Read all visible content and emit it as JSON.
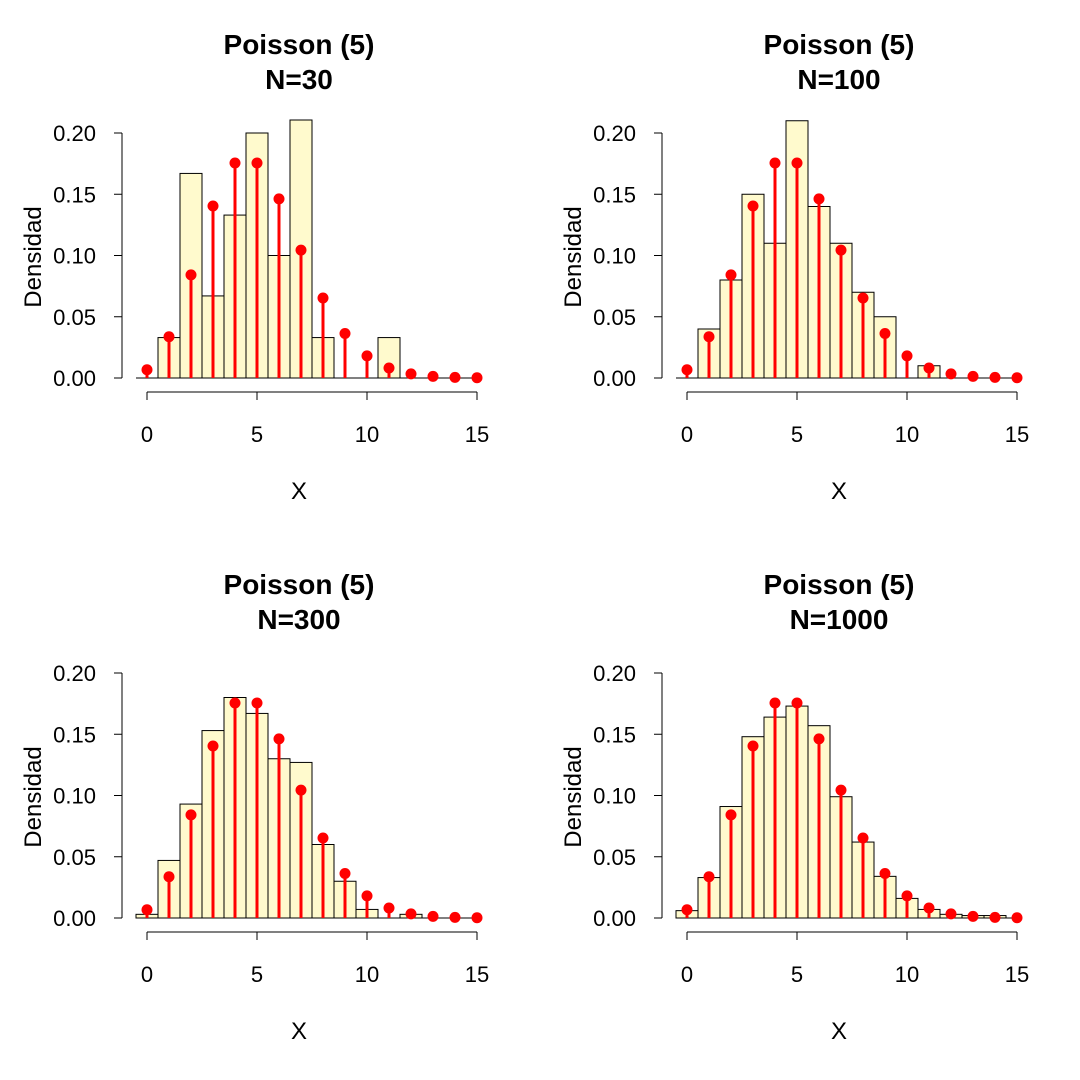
{
  "chart_data": [
    {
      "type": "bar",
      "title_line1": "Poisson (5)",
      "title_line2": "N=30",
      "xlabel": "X",
      "ylabel": "Densidad",
      "xlim": [
        0,
        15
      ],
      "ylim": [
        0,
        0.2
      ],
      "xticks": [
        0,
        5,
        10,
        15
      ],
      "yticks": [
        "0.00",
        "0.05",
        "0.10",
        "0.15",
        "0.20"
      ],
      "histogram": {
        "x": [
          1,
          2,
          3,
          4,
          5,
          6,
          7,
          8,
          9,
          10,
          11
        ],
        "density": [
          0.033,
          0.167,
          0.067,
          0.133,
          0.2,
          0.1,
          0.233,
          0.033,
          0,
          0,
          0.033
        ]
      },
      "poisson_pmf": {
        "x": [
          0,
          1,
          2,
          3,
          4,
          5,
          6,
          7,
          8,
          9,
          10,
          11,
          12,
          13,
          14,
          15
        ],
        "p": [
          0.0067,
          0.0337,
          0.0842,
          0.1404,
          0.1755,
          0.1755,
          0.1462,
          0.1044,
          0.0653,
          0.0363,
          0.0181,
          0.0082,
          0.0034,
          0.0013,
          0.0005,
          0.0002
        ]
      },
      "colors": {
        "bar_fill": "#FFFACD",
        "bar_stroke": "#000000",
        "pmf": "#FF0000"
      }
    },
    {
      "type": "bar",
      "title_line1": "Poisson (5)",
      "title_line2": "N=100",
      "xlabel": "X",
      "ylabel": "Densidad",
      "xlim": [
        0,
        15
      ],
      "ylim": [
        0,
        0.2
      ],
      "xticks": [
        0,
        5,
        10,
        15
      ],
      "yticks": [
        "0.00",
        "0.05",
        "0.10",
        "0.15",
        "0.20"
      ],
      "histogram": {
        "x": [
          1,
          2,
          3,
          4,
          5,
          6,
          7,
          8,
          9,
          10,
          11
        ],
        "density": [
          0.04,
          0.08,
          0.15,
          0.11,
          0.21,
          0.14,
          0.11,
          0.07,
          0.05,
          0,
          0.01
        ]
      },
      "poisson_pmf": {
        "x": [
          0,
          1,
          2,
          3,
          4,
          5,
          6,
          7,
          8,
          9,
          10,
          11,
          12,
          13,
          14,
          15
        ],
        "p": [
          0.0067,
          0.0337,
          0.0842,
          0.1404,
          0.1755,
          0.1755,
          0.1462,
          0.1044,
          0.0653,
          0.0363,
          0.0181,
          0.0082,
          0.0034,
          0.0013,
          0.0005,
          0.0002
        ]
      },
      "colors": {
        "bar_fill": "#FFFACD",
        "bar_stroke": "#000000",
        "pmf": "#FF0000"
      }
    },
    {
      "type": "bar",
      "title_line1": "Poisson (5)",
      "title_line2": "N=300",
      "xlabel": "X",
      "ylabel": "Densidad",
      "xlim": [
        0,
        15
      ],
      "ylim": [
        0,
        0.2
      ],
      "xticks": [
        0,
        5,
        10,
        15
      ],
      "yticks": [
        "0.00",
        "0.05",
        "0.10",
        "0.15",
        "0.20"
      ],
      "histogram": {
        "x": [
          0,
          1,
          2,
          3,
          4,
          5,
          6,
          7,
          8,
          9,
          10,
          11,
          12
        ],
        "density": [
          0.003,
          0.047,
          0.093,
          0.153,
          0.18,
          0.167,
          0.13,
          0.127,
          0.06,
          0.03,
          0.007,
          0,
          0.003
        ]
      },
      "poisson_pmf": {
        "x": [
          0,
          1,
          2,
          3,
          4,
          5,
          6,
          7,
          8,
          9,
          10,
          11,
          12,
          13,
          14,
          15
        ],
        "p": [
          0.0067,
          0.0337,
          0.0842,
          0.1404,
          0.1755,
          0.1755,
          0.1462,
          0.1044,
          0.0653,
          0.0363,
          0.0181,
          0.0082,
          0.0034,
          0.0013,
          0.0005,
          0.0002
        ]
      },
      "colors": {
        "bar_fill": "#FFFACD",
        "bar_stroke": "#000000",
        "pmf": "#FF0000"
      }
    },
    {
      "type": "bar",
      "title_line1": "Poisson (5)",
      "title_line2": "N=1000",
      "xlabel": "X",
      "ylabel": "Densidad",
      "xlim": [
        0,
        15
      ],
      "ylim": [
        0,
        0.2
      ],
      "xticks": [
        0,
        5,
        10,
        15
      ],
      "yticks": [
        "0.00",
        "0.05",
        "0.10",
        "0.15",
        "0.20"
      ],
      "histogram": {
        "x": [
          0,
          1,
          2,
          3,
          4,
          5,
          6,
          7,
          8,
          9,
          10,
          11,
          12,
          13,
          14
        ],
        "density": [
          0.006,
          0.033,
          0.091,
          0.148,
          0.164,
          0.173,
          0.157,
          0.099,
          0.062,
          0.034,
          0.016,
          0.007,
          0.003,
          0.002,
          0.002
        ]
      },
      "poisson_pmf": {
        "x": [
          0,
          1,
          2,
          3,
          4,
          5,
          6,
          7,
          8,
          9,
          10,
          11,
          12,
          13,
          14,
          15
        ],
        "p": [
          0.0067,
          0.0337,
          0.0842,
          0.1404,
          0.1755,
          0.1755,
          0.1462,
          0.1044,
          0.0653,
          0.0363,
          0.0181,
          0.0082,
          0.0034,
          0.0013,
          0.0005,
          0.0002
        ]
      },
      "colors": {
        "bar_fill": "#FFFACD",
        "bar_stroke": "#000000",
        "pmf": "#FF0000"
      }
    }
  ]
}
